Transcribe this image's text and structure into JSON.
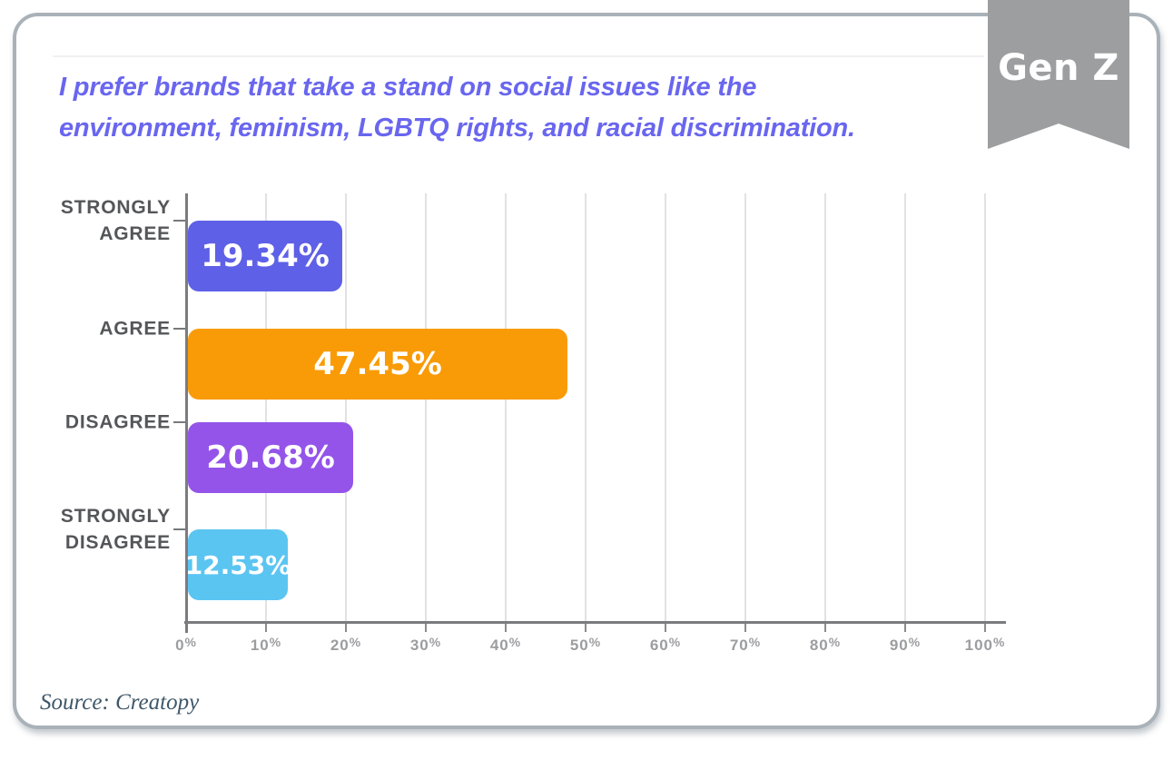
{
  "header": {
    "title_line1": "I prefer brands that take a stand on social issues like the",
    "title_line2": "environment, feminism, LGBTQ rights, and racial discrimination.",
    "ribbon_label": "Gen Z"
  },
  "footer": {
    "source": "Source: Creatopy"
  },
  "colors": {
    "title_text": "#6966EF",
    "ribbon_bg": "#9C9EA0",
    "ribbon_text": "#FFFFFF",
    "card_border": "#A9B2B8",
    "axis": "#7A7C7F",
    "gridline": "#E2E2E4",
    "category_label": "#555659",
    "tick_label": "#9C9DA0",
    "value_label": "#FFFFFF",
    "source_text": "#3E5769"
  },
  "chart_data": {
    "type": "bar",
    "orientation": "horizontal",
    "title": "I prefer brands that take a stand on social issues like the environment, feminism, LGBTQ rights, and racial discrimination.",
    "group_label": "Gen Z",
    "source": "Source: Creatopy",
    "categories": [
      "STRONGLY AGREE",
      "AGREE",
      "DISAGREE",
      "STRONGLY DISAGREE"
    ],
    "values": [
      19.34,
      47.45,
      20.68,
      12.53
    ],
    "value_labels": [
      "19.34%",
      "47.45%",
      "20.68%",
      "12.53%"
    ],
    "bar_colors": [
      "#5E60E7",
      "#F99B06",
      "#9454E9",
      "#5BC5F2"
    ],
    "x_ticks": [
      "0%",
      "10%",
      "20%",
      "30%",
      "40%",
      "50%",
      "60%",
      "70%",
      "80%",
      "90%",
      "100%"
    ],
    "xlim": [
      0,
      100
    ],
    "xlabel": "",
    "ylabel": "",
    "grid": true,
    "legend": false
  }
}
